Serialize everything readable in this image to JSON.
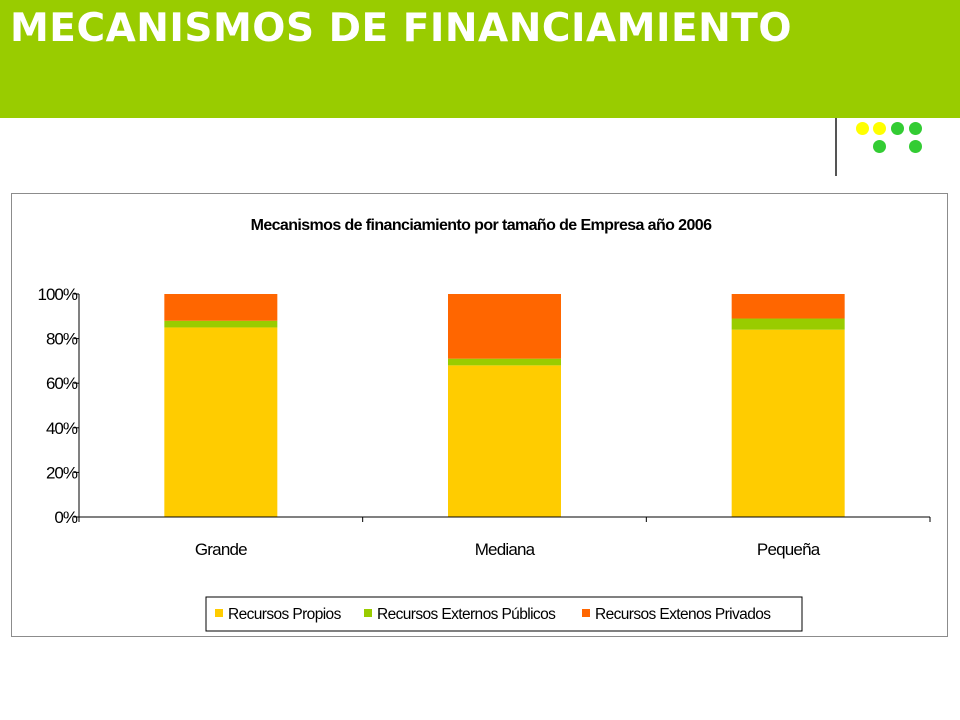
{
  "slide": {
    "title": "MECANISMOS DE FINANCIAMIENTO",
    "colors": {
      "header": "#99cc00",
      "dots_yellow": "#ffff00",
      "dots_green": "#33cc33"
    }
  },
  "chart_data": {
    "type": "bar",
    "stacked": true,
    "title": "Mecanismos de financiamiento por tamaño de Empresa año 2006",
    "xlabel": "",
    "ylabel": "",
    "categories": [
      "Grande",
      "Mediana",
      "Pequeña"
    ],
    "series": [
      {
        "name": "Recursos Propios",
        "color": "#ffcc00",
        "values": [
          0.85,
          0.68,
          0.84
        ]
      },
      {
        "name": "Recursos Externos Públicos",
        "color": "#99cc00",
        "values": [
          0.03,
          0.03,
          0.05
        ]
      },
      {
        "name": "Recursos Extenos Privados",
        "color": "#ff6600",
        "values": [
          0.12,
          0.29,
          0.11
        ]
      }
    ],
    "ylim": [
      0,
      1
    ],
    "yticks": [
      0,
      0.2,
      0.4,
      0.6,
      0.8,
      1.0
    ],
    "ytick_labels": [
      "0%",
      "20%",
      "40%",
      "60%",
      "80%",
      "100%"
    ],
    "grid": false,
    "legend_position": "bottom"
  }
}
